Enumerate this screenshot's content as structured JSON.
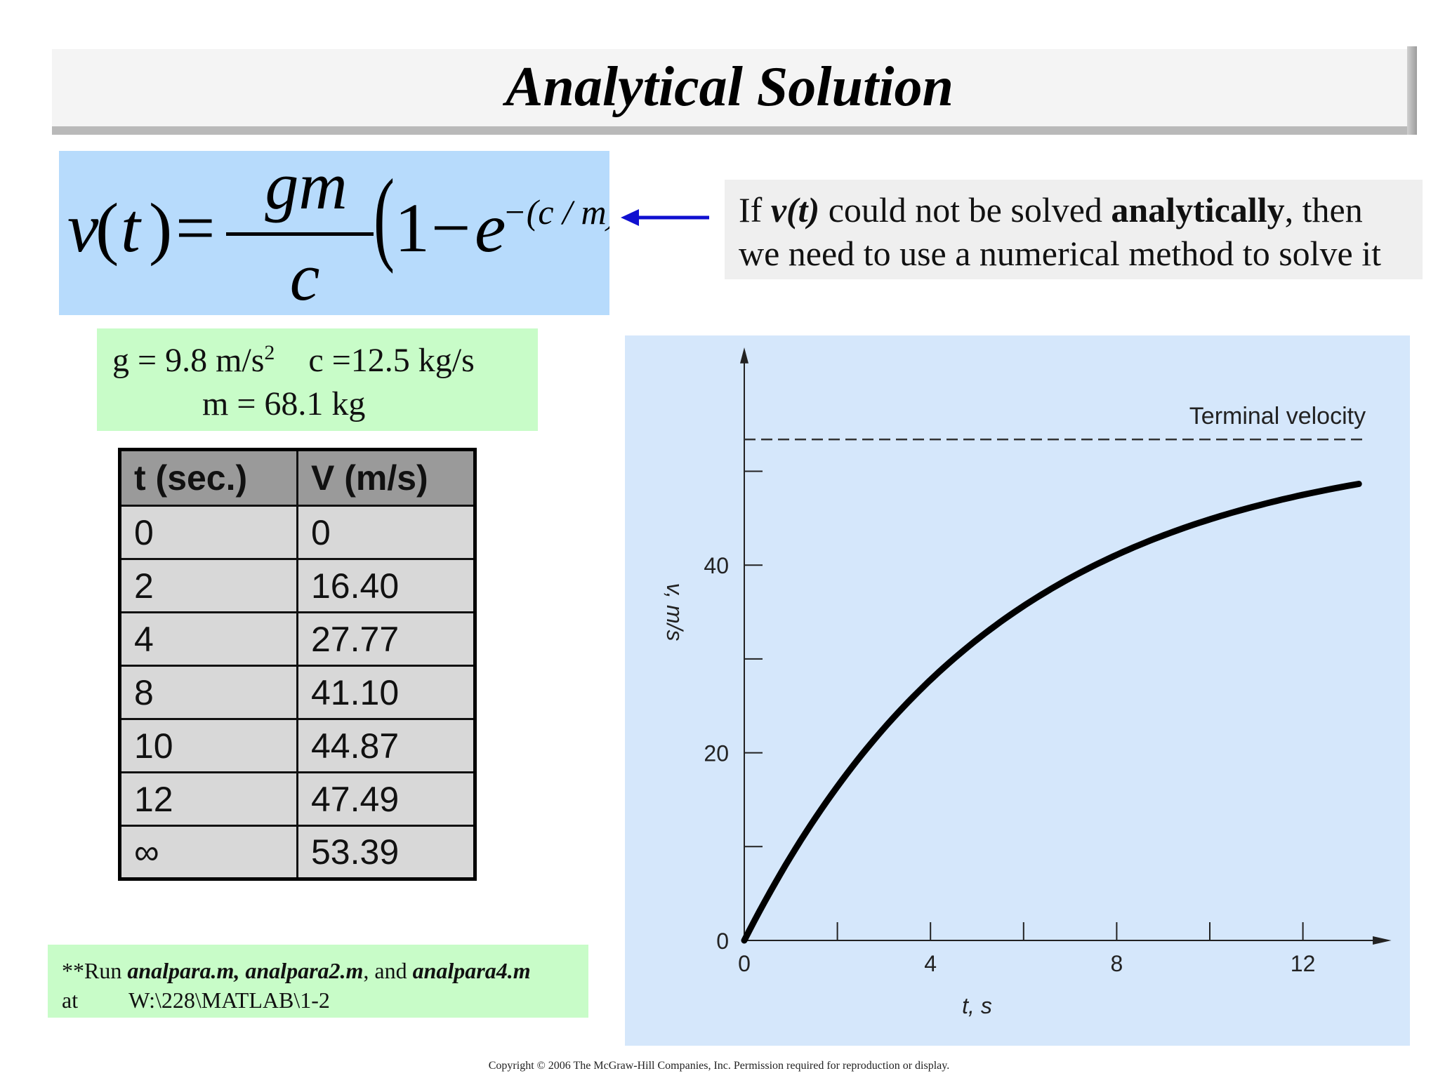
{
  "title": "Analytical Solution",
  "formula": {
    "v": "v",
    "t": "t",
    "numerator": "gm",
    "denominator": "c",
    "one": "1",
    "minus": "−",
    "e": "e",
    "exponent": "−(c / m)t"
  },
  "note": {
    "t1": "If ",
    "t2": "v(t)",
    "t3": " could not be solved ",
    "t4": "analytically",
    "t5": ", then we need to use a numerical method to solve it"
  },
  "constants": {
    "g": "g = 9.8  m/s",
    "g_exp": "2",
    "c": "c =12.5 kg/s",
    "m": "m = 68.1 kg"
  },
  "table": {
    "headers": [
      "t (sec.)",
      "V (m/s)"
    ],
    "rows": [
      [
        "0",
        "0"
      ],
      [
        "2",
        "16.40"
      ],
      [
        "4",
        "27.77"
      ],
      [
        "8",
        "41.10"
      ],
      [
        "10",
        "44.87"
      ],
      [
        "12",
        "47.49"
      ],
      [
        "∞",
        "53.39"
      ]
    ]
  },
  "run_note": {
    "prefix": "**Run ",
    "files": "analpara.m, analpara2.m",
    "and": ", and ",
    "file3": "analpara4.m",
    "at": "at",
    "path": "W:\\228\\MATLAB\\1-2"
  },
  "chart_data": {
    "type": "line",
    "xlabel": "t, s",
    "ylabel": "v, m/s",
    "x_ticks": [
      "0",
      "4",
      "8",
      "12"
    ],
    "y_ticks": [
      "0",
      "20",
      "40"
    ],
    "xlim": [
      0,
      13.6
    ],
    "ylim": [
      0,
      60
    ],
    "annotation": "Terminal velocity",
    "terminal_velocity": 53.39,
    "model": {
      "g": 9.8,
      "c": 12.5,
      "m": 68.1
    },
    "x": [
      0,
      1,
      2,
      3,
      4,
      5,
      6,
      7,
      8,
      9,
      10,
      11,
      12,
      13.2
    ],
    "y": [
      0,
      8.96,
      16.4,
      22.56,
      27.77,
      32.1,
      35.7,
      38.68,
      41.1,
      43.21,
      44.87,
      46.32,
      47.49,
      48.6
    ]
  },
  "copyright": "Copyright © 2006 The McGraw-Hill Companies, Inc.  Permission required for reproduction or display."
}
